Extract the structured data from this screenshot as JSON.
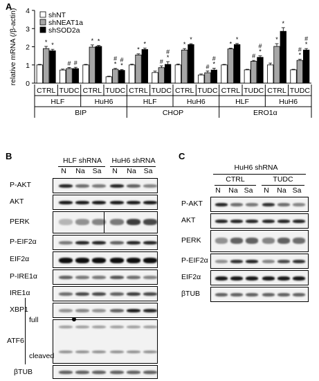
{
  "panelA": {
    "letter": "A",
    "chart_data": {
      "type": "bar",
      "ylabel": "relative mRNA (/β-actin)",
      "ylim": [
        0,
        4
      ],
      "yticks": [
        "0",
        "1",
        "2",
        "3",
        "4"
      ],
      "legend": [
        "shNT",
        "shNEAT1a",
        "shSOD2a"
      ],
      "legend_placement": "top-left",
      "colors": [
        "#ffffff",
        "#a6a6a6",
        "#000000"
      ],
      "groups": [
        {
          "gene": "BIP",
          "cell": "HLF",
          "cond": "CTRL",
          "values": [
            1.0,
            1.9,
            1.78
          ],
          "errors": [
            0.03,
            0.12,
            0.08
          ],
          "marks": [
            "",
            "*",
            "*"
          ]
        },
        {
          "gene": "BIP",
          "cell": "HLF",
          "cond": "TUDC",
          "values": [
            0.72,
            0.8,
            0.8
          ],
          "errors": [
            0.05,
            0.06,
            0.07
          ],
          "marks": [
            "",
            "#",
            "#"
          ]
        },
        {
          "gene": "BIP",
          "cell": "HuH6",
          "cond": "CTRL",
          "values": [
            1.0,
            1.98,
            2.02
          ],
          "errors": [
            0.03,
            0.12,
            0.05
          ],
          "marks": [
            "",
            "*",
            "*"
          ]
        },
        {
          "gene": "BIP",
          "cell": "HuH6",
          "cond": "TUDC",
          "values": [
            0.35,
            0.76,
            0.7
          ],
          "errors": [
            0.03,
            0.05,
            0.05
          ],
          "marks": [
            "",
            "# *",
            "# *"
          ]
        },
        {
          "gene": "CHOP",
          "cell": "HLF",
          "cond": "CTRL",
          "values": [
            1.0,
            1.55,
            1.85
          ],
          "errors": [
            0.04,
            0.06,
            0.08
          ],
          "marks": [
            "",
            "*",
            "*"
          ]
        },
        {
          "gene": "CHOP",
          "cell": "HLF",
          "cond": "TUDC",
          "values": [
            0.58,
            0.85,
            1.03
          ],
          "errors": [
            0.08,
            0.1,
            0.15
          ],
          "marks": [
            "",
            "#",
            "# *"
          ]
        },
        {
          "gene": "CHOP",
          "cell": "HuH6",
          "cond": "CTRL",
          "values": [
            1.0,
            1.82,
            2.12
          ],
          "errors": [
            0.05,
            0.08,
            0.05
          ],
          "marks": [
            "",
            "*",
            "*"
          ]
        },
        {
          "gene": "CHOP",
          "cell": "HuH6",
          "cond": "TUDC",
          "values": [
            0.45,
            0.57,
            0.72
          ],
          "errors": [
            0.05,
            0.1,
            0.1
          ],
          "marks": [
            "",
            "#",
            "# *"
          ]
        },
        {
          "gene": "ERO1α",
          "cell": "HLF",
          "cond": "CTRL",
          "values": [
            1.0,
            1.88,
            2.12
          ],
          "errors": [
            0.03,
            0.04,
            0.06
          ],
          "marks": [
            "",
            "*",
            "*"
          ]
        },
        {
          "gene": "ERO1α",
          "cell": "HLF",
          "cond": "TUDC",
          "values": [
            0.73,
            1.2,
            1.42
          ],
          "errors": [
            0.03,
            0.05,
            0.08
          ],
          "marks": [
            "",
            "#",
            "# *"
          ]
        },
        {
          "gene": "ERO1α",
          "cell": "HuH6",
          "cond": "CTRL",
          "values": [
            1.0,
            2.02,
            2.85
          ],
          "errors": [
            0.1,
            0.15,
            0.2
          ],
          "marks": [
            "",
            "*",
            "*"
          ]
        },
        {
          "gene": "ERO1α",
          "cell": "HuH6",
          "cond": "TUDC",
          "values": [
            0.73,
            1.25,
            1.82
          ],
          "errors": [
            0.03,
            0.06,
            0.08
          ],
          "marks": [
            "",
            "# *",
            "# *"
          ]
        }
      ],
      "cond_labels": [
        "CTRL",
        "TUDC",
        "CTRL",
        "TUDC",
        "CTRL",
        "TUDC",
        "CTRL",
        "TUDC",
        "CTRL",
        "TUDC",
        "CTRL",
        "TUDC"
      ],
      "cell_labels": [
        "HLF",
        "HuH6",
        "HLF",
        "HuH6",
        "HLF",
        "HuH6"
      ],
      "gene_labels": [
        "BIP",
        "CHOP",
        "ERO1α"
      ]
    }
  },
  "panelB": {
    "letter": "B",
    "group1": "HLF shRNA",
    "group2": "HuH6 shRNA",
    "lanes": [
      "N",
      "Na",
      "Sa",
      "N",
      "Na",
      "Sa"
    ],
    "rows": [
      "P-AKT",
      "AKT",
      "PERK",
      "P-EIF2α",
      "EIF2α",
      "P-IRE1α",
      "IRE1α",
      "XBP1"
    ],
    "atf6": "ATF6",
    "atf6_full": "full",
    "atf6_cleaved": "cleaved",
    "last_row": "βTUB"
  },
  "panelC": {
    "letter": "C",
    "title": "HuH6 shRNA",
    "group1": "CTRL",
    "group2": "TUDC",
    "lanes": [
      "N",
      "Na",
      "Sa",
      "N",
      "Na",
      "Sa"
    ],
    "rows": [
      "P-AKT",
      "AKT",
      "PERK",
      "P-EIF2α",
      "EIF2α",
      "βTUB"
    ]
  }
}
